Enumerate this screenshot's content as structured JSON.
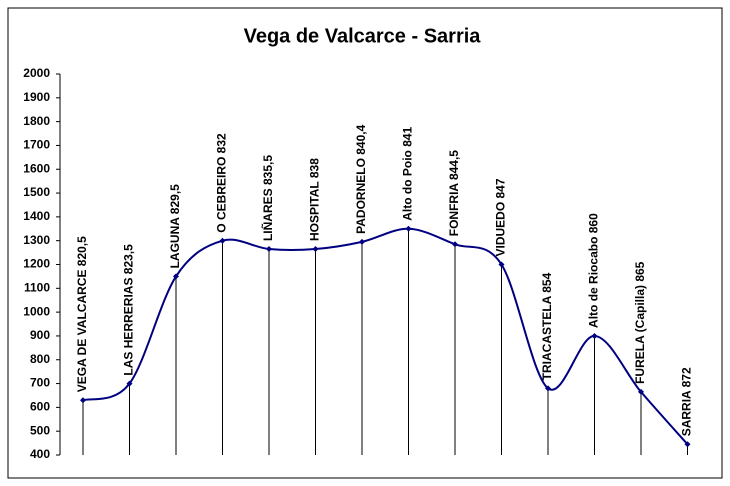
{
  "chart_data": {
    "type": "line",
    "title": "Vega de Valcarce - Sarria",
    "categories": [
      "VEGA DE VALCARCE 820,5",
      "LAS HERRERIAS  823,5",
      "LAGUNA  829,5",
      "O CEBREIRO 832",
      "LIÑARES  835,5",
      "HOSPITAL  838",
      "PADORNELO  840,4",
      "Alto do Poio  841",
      "FONFRIA  844,5",
      "VIDUEDO  847",
      "TRIACASTELA  854",
      "Alto de Riocabo  860",
      "FURELA (Capilla) 865",
      "SARRIA 872"
    ],
    "values": [
      630,
      700,
      1150,
      1300,
      1265,
      1265,
      1295,
      1350,
      1285,
      1200,
      680,
      900,
      665,
      445
    ],
    "color": "#000080",
    "ylim": [
      400,
      2000
    ],
    "yticks": [
      400,
      500,
      600,
      700,
      800,
      900,
      1000,
      1100,
      1200,
      1300,
      1400,
      1500,
      1600,
      1700,
      1800,
      1900,
      2000
    ],
    "grid": false
  }
}
